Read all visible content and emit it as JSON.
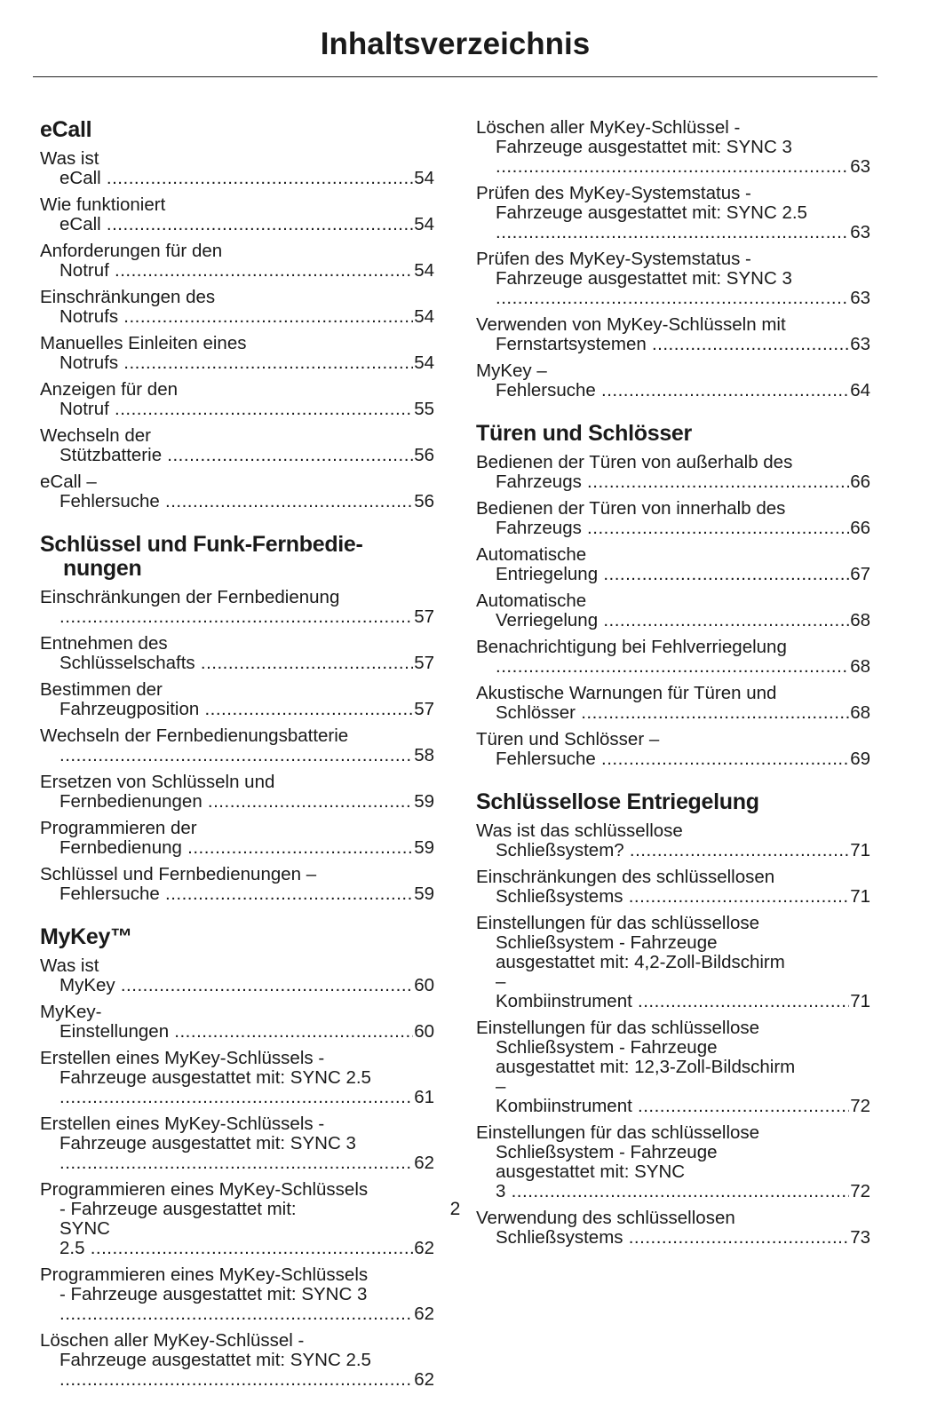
{
  "header": {
    "title": "Inhaltsverzeichnis"
  },
  "columns": [
    {
      "blocks": [
        {
          "title": "eCall",
          "entries": [
            {
              "text": "Was ist eCall",
              "page": 54
            },
            {
              "text": "Wie funktioniert eCall",
              "page": 54
            },
            {
              "text": "Anforderungen für den Notruf",
              "page": 54
            },
            {
              "text": "Einschränkungen des Notrufs",
              "page": 54
            },
            {
              "text": "Manuelles Einleiten eines Notrufs",
              "page": 54
            },
            {
              "text": "Anzeigen für den Notruf",
              "page": 55
            },
            {
              "text": "Wechseln der Stützbatterie",
              "page": 56
            },
            {
              "text": "eCall – Fehlersuche",
              "page": 56
            }
          ]
        },
        {
          "title": "Schlüssel und Funk-Fernbedie-\nnungen",
          "entries": [
            {
              "text": "Einschränkungen der Fernbedienung\n",
              "page": 57
            },
            {
              "text": "Entnehmen des Schlüsselschafts",
              "page": 57
            },
            {
              "text": "Bestimmen der Fahrzeugposition",
              "page": 57
            },
            {
              "text": "Wechseln der Fernbedienungsbatterie\n",
              "page": 58
            },
            {
              "text": "Ersetzen von Schlüsseln und\nFernbedienungen",
              "page": 59
            },
            {
              "text": "Programmieren der Fernbedienung",
              "page": 59
            },
            {
              "text": "Schlüssel und Fernbedienungen –\nFehlersuche",
              "page": 59
            }
          ]
        },
        {
          "title": "MyKey™",
          "entries": [
            {
              "text": "Was ist MyKey",
              "page": 60
            },
            {
              "text": "MyKey-Einstellungen",
              "page": 60
            },
            {
              "text": "Erstellen eines MyKey-Schlüssels -\nFahrzeuge ausgestattet mit: SYNC 2.5\n",
              "page": 61
            },
            {
              "text": "Erstellen eines MyKey-Schlüssels -\nFahrzeuge ausgestattet mit: SYNC 3\n",
              "page": 62
            },
            {
              "text": "Programmieren eines MyKey-Schlüssels\n- Fahrzeuge ausgestattet mit:\nSYNC 2.5",
              "page": 62
            },
            {
              "text": "Programmieren eines MyKey-Schlüssels\n- Fahrzeuge ausgestattet mit: SYNC 3\n",
              "page": 62
            },
            {
              "text": "Löschen aller MyKey-Schlüssel -\nFahrzeuge ausgestattet mit: SYNC 2.5\n",
              "page": 62
            }
          ]
        }
      ]
    },
    {
      "blocks": [
        {
          "entries": [
            {
              "text": "Löschen aller MyKey-Schlüssel -\nFahrzeuge ausgestattet mit: SYNC 3\n",
              "page": 63
            },
            {
              "text": "Prüfen des MyKey-Systemstatus -\nFahrzeuge ausgestattet mit: SYNC 2.5\n",
              "page": 63
            },
            {
              "text": "Prüfen des MyKey-Systemstatus -\nFahrzeuge ausgestattet mit: SYNC 3\n",
              "page": 63
            },
            {
              "text": "Verwenden von MyKey-Schlüsseln mit\nFernstartsystemen",
              "page": 63
            },
            {
              "text": "MyKey – Fehlersuche",
              "page": 64
            }
          ]
        },
        {
          "title": "Türen und Schlösser",
          "entries": [
            {
              "text": "Bedienen der Türen von außerhalb des\nFahrzeugs",
              "page": 66
            },
            {
              "text": "Bedienen der Türen von innerhalb des\nFahrzeugs",
              "page": 66
            },
            {
              "text": "Automatische Entriegelung",
              "page": 67
            },
            {
              "text": "Automatische Verriegelung",
              "page": 68
            },
            {
              "text": "Benachrichtigung bei Fehlverriegelung\n",
              "page": 68
            },
            {
              "text": "Akustische Warnungen für Türen und\nSchlösser",
              "page": 68
            },
            {
              "text": "Türen und Schlösser – Fehlersuche",
              "page": 69
            }
          ]
        },
        {
          "title": "Schlüssellose Entriegelung",
          "entries": [
            {
              "text": "Was ist das schlüssellose\nSchließsystem?",
              "page": 71
            },
            {
              "text": "Einschränkungen des schlüssellosen\nSchließsystems",
              "page": 71
            },
            {
              "text": "Einstellungen für das schlüssellose\nSchließsystem - Fahrzeuge\nausgestattet mit: 4,2-Zoll-Bildschirm\n– Kombiinstrument",
              "page": 71
            },
            {
              "text": "Einstellungen für das schlüssellose\nSchließsystem - Fahrzeuge\nausgestattet mit: 12,3-Zoll-Bildschirm\n– Kombiinstrument",
              "page": 72
            },
            {
              "text": "Einstellungen für das schlüssellose\nSchließsystem - Fahrzeuge\nausgestattet mit: SYNC 3",
              "page": 72
            },
            {
              "text": "Verwendung des schlüssellosen\nSchließsystems",
              "page": 73
            }
          ]
        }
      ]
    }
  ],
  "footer": {
    "page_number": 2
  }
}
